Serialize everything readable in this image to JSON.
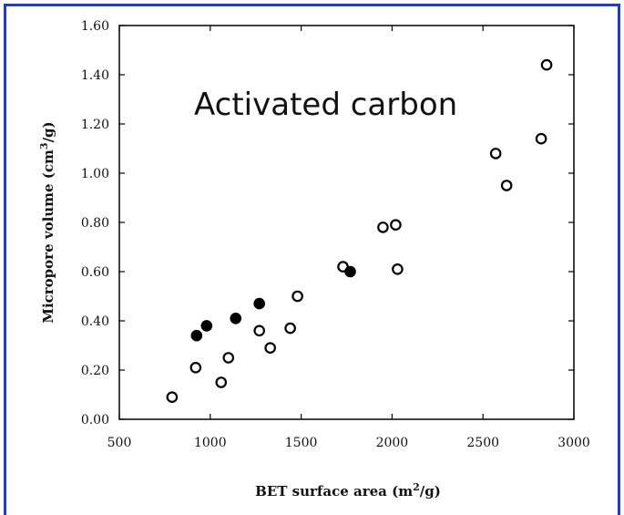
{
  "colors": {
    "frame": "#1f3bd6",
    "marker": "#000000",
    "background": "#ffffff"
  },
  "chart_data": {
    "type": "scatter",
    "title": "",
    "annotation": "Activated carbon",
    "xlabel_main": "BET surface area (m",
    "xlabel_sup": "2",
    "xlabel_tail": "/g)",
    "ylabel_main": "Micropore volume (cm",
    "ylabel_sup": "3",
    "ylabel_tail": "/g)",
    "xlim": [
      500,
      3000
    ],
    "ylim": [
      0,
      1.6
    ],
    "x_ticks": [
      500,
      1000,
      1500,
      2000,
      2500,
      3000
    ],
    "x_tick_labels": [
      "500",
      "1000",
      "1500",
      "2000",
      "2500",
      "3000"
    ],
    "y_ticks": [
      0,
      0.2,
      0.4,
      0.6,
      0.8,
      1.0,
      1.2,
      1.4,
      1.6
    ],
    "y_tick_labels": [
      "0.00",
      "0.20",
      "0.40",
      "0.60",
      "0.80",
      "1.00",
      "1.20",
      "1.40",
      "1.60"
    ],
    "grid": false,
    "legend": null,
    "series": [
      {
        "marker": "open-circle",
        "points": [
          [
            790,
            0.09
          ],
          [
            920,
            0.21
          ],
          [
            1060,
            0.15
          ],
          [
            1100,
            0.25
          ],
          [
            1270,
            0.36
          ],
          [
            1330,
            0.29
          ],
          [
            1440,
            0.37
          ],
          [
            1480,
            0.5
          ],
          [
            1730,
            0.62
          ],
          [
            1950,
            0.78
          ],
          [
            2020,
            0.79
          ],
          [
            2030,
            0.61
          ],
          [
            2570,
            1.08
          ],
          [
            2630,
            0.95
          ],
          [
            2820,
            1.14
          ],
          [
            2850,
            1.44
          ]
        ]
      },
      {
        "marker": "filled-circle",
        "points": [
          [
            925,
            0.34
          ],
          [
            980,
            0.38
          ],
          [
            1140,
            0.41
          ],
          [
            1270,
            0.47
          ],
          [
            1770,
            0.6
          ]
        ]
      }
    ]
  }
}
